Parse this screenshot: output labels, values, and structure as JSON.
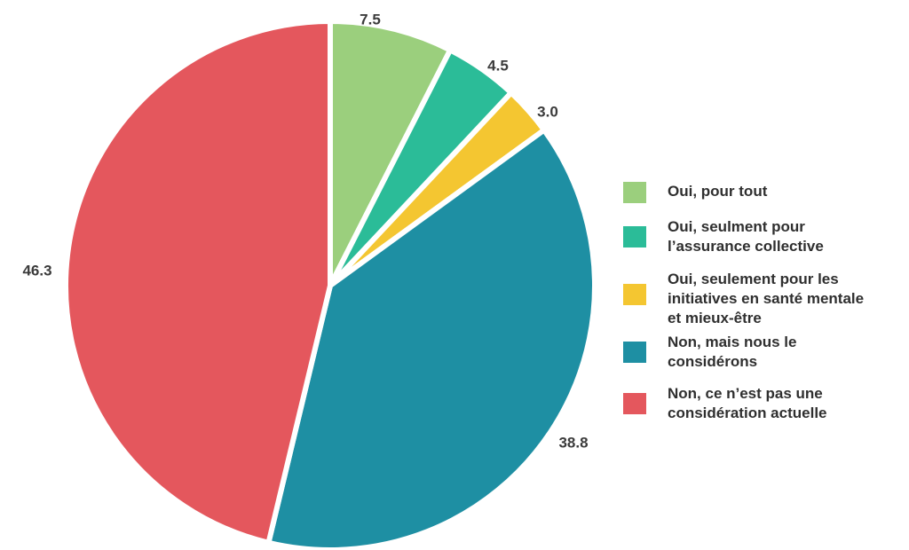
{
  "chart_data": {
    "type": "pie",
    "title": "",
    "start": "12 o'clock",
    "direction": "clockwise",
    "slices": [
      {
        "label": "Oui, pour tout",
        "value": 7.5,
        "value_label": "7.5",
        "color": "#9bcf7d"
      },
      {
        "label": "Oui, seulment pour\nl’assurance collective",
        "value": 4.5,
        "value_label": "4.5",
        "color": "#2bbc98"
      },
      {
        "label": "Oui, seulement pour les\ninitiatives en santé mentale\net mieux-être",
        "value": 3.0,
        "value_label": "3.0",
        "color": "#f4c631"
      },
      {
        "label": "Non, mais nous le\nconsidérons",
        "value": 38.8,
        "value_label": "38.8",
        "color": "#1e8fa3"
      },
      {
        "label": "Non, ce n’est pas une\nconsidération actuelle",
        "value": 46.3,
        "value_label": "46.3",
        "color": "#e4575d"
      }
    ],
    "legend_position": "right"
  }
}
